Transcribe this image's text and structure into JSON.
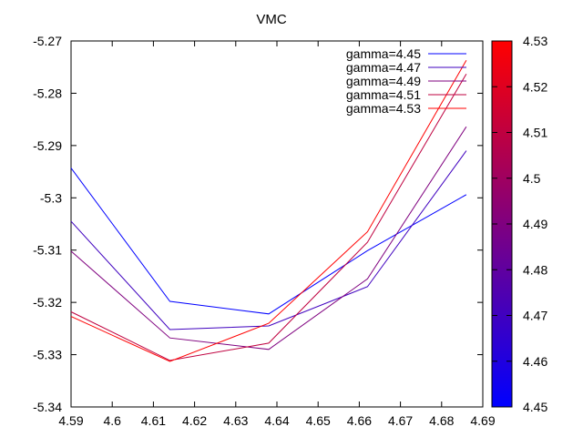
{
  "chart_data": {
    "type": "line",
    "title": "VMC",
    "xlabel": "",
    "ylabel": "",
    "xlim": [
      4.59,
      4.69
    ],
    "ylim": [
      -5.34,
      -5.27
    ],
    "x_ticks": [
      "4.59",
      "4.6",
      "4.61",
      "4.62",
      "4.63",
      "4.64",
      "4.65",
      "4.66",
      "4.67",
      "4.68",
      "4.69"
    ],
    "y_ticks": [
      "-5.27",
      "-5.28",
      "-5.29",
      "-5.3",
      "-5.31",
      "-5.32",
      "-5.33",
      "-5.34"
    ],
    "grid": false,
    "legend_position": "top-right",
    "x": [
      4.59,
      4.614,
      4.638,
      4.662,
      4.686
    ],
    "series": [
      {
        "name": "gamma=4.45",
        "color": "#0000ff",
        "values": [
          -5.2943,
          -5.3198,
          -5.3222,
          -5.3101,
          -5.2994
        ]
      },
      {
        "name": "gamma=4.47",
        "color": "#3f00bf",
        "values": [
          -5.3045,
          -5.3252,
          -5.3245,
          -5.317,
          -5.291
        ]
      },
      {
        "name": "gamma=4.49",
        "color": "#7f007f",
        "values": [
          -5.3102,
          -5.3268,
          -5.329,
          -5.3155,
          -5.2864
        ]
      },
      {
        "name": "gamma=4.51",
        "color": "#bf003f",
        "values": [
          -5.3218,
          -5.3311,
          -5.3278,
          -5.3085,
          -5.2763
        ]
      },
      {
        "name": "gamma=4.53",
        "color": "#ff0000",
        "values": [
          -5.3227,
          -5.3313,
          -5.324,
          -5.3065,
          -5.2737
        ]
      }
    ],
    "colorbar": {
      "min": 4.45,
      "max": 4.53,
      "ticks": [
        "4.45",
        "4.46",
        "4.47",
        "4.48",
        "4.49",
        "4.5",
        "4.51",
        "4.52",
        "4.53"
      ],
      "color_low": "#0000ff",
      "color_high": "#ff0000"
    }
  }
}
